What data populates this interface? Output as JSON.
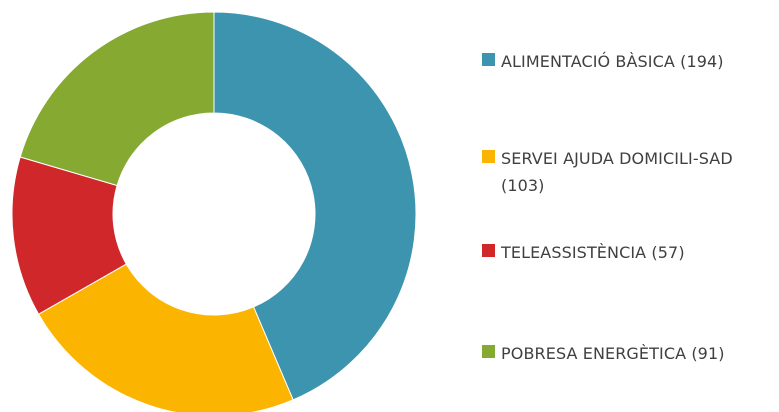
{
  "chart_data": {
    "type": "pie",
    "donut": true,
    "categories": [
      "ALIMENTACIÓ BÀSICA",
      "SERVEI AJUDA DOMICILI-SAD",
      "TELEASSISTÈNCIA",
      "POBRESA ENERGÈTICA"
    ],
    "values": [
      194,
      103,
      57,
      91
    ],
    "colors": [
      "#3c94ae",
      "#fbb400",
      "#d0272b",
      "#85a931"
    ],
    "legend": {
      "position": "right",
      "entries": [
        "ALIMENTACIÓ BÀSICA (194)",
        "SERVEI AJUDA DOMICILI-SAD (103)",
        "TELEASSISTÈNCIA (57)",
        "POBRESA ENERGÈTICA (91)"
      ]
    }
  }
}
